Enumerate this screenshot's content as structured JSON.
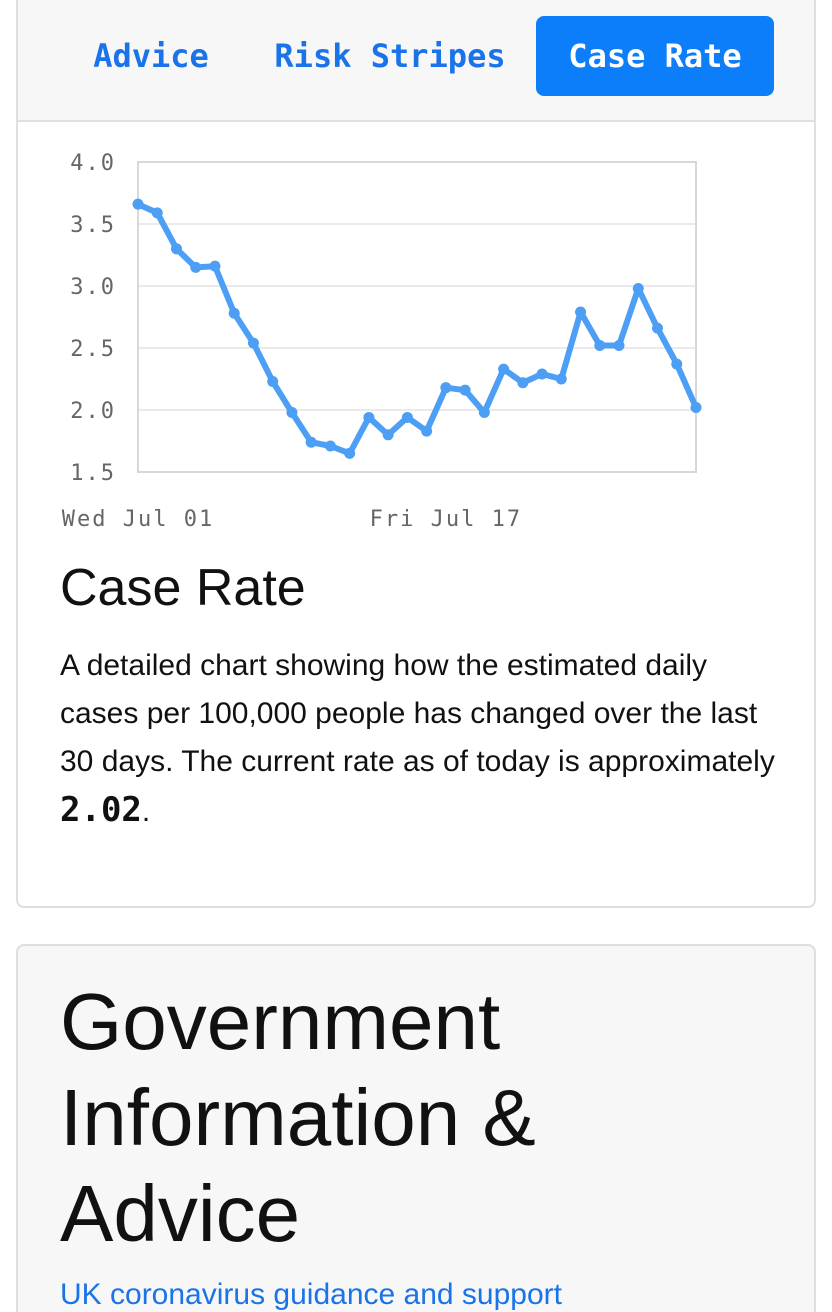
{
  "tabs": [
    {
      "label": "Advice",
      "active": false
    },
    {
      "label": "Risk Stripes",
      "active": false
    },
    {
      "label": "Case Rate",
      "active": true
    }
  ],
  "case_rate": {
    "title": "Case Rate",
    "description_prefix": "A detailed chart showing how the estimated daily cases per 100,000 people has changed over the last 30 days. The current rate as of today is approximately ",
    "current_rate": "2.02",
    "description_suffix": "."
  },
  "chart_data": {
    "type": "line",
    "x": [
      "Jul 01",
      "Jul 02",
      "Jul 03",
      "Jul 04",
      "Jul 05",
      "Jul 06",
      "Jul 07",
      "Jul 08",
      "Jul 09",
      "Jul 10",
      "Jul 11",
      "Jul 12",
      "Jul 13",
      "Jul 14",
      "Jul 15",
      "Jul 16",
      "Jul 17",
      "Jul 18",
      "Jul 19",
      "Jul 20",
      "Jul 21",
      "Jul 22",
      "Jul 23",
      "Jul 24",
      "Jul 25",
      "Jul 26",
      "Jul 27",
      "Jul 28",
      "Jul 29",
      "Jul 30"
    ],
    "series": [
      {
        "values": [
          3.66,
          3.59,
          3.3,
          3.15,
          3.16,
          2.78,
          2.54,
          2.23,
          1.98,
          1.74,
          1.71,
          1.65,
          1.94,
          1.8,
          1.94,
          1.83,
          2.18,
          2.16,
          1.98,
          2.33,
          2.22,
          2.29,
          2.25,
          2.79,
          2.52,
          2.52,
          2.98,
          2.66,
          2.37,
          2.02
        ]
      }
    ],
    "x_tick_labels": [
      "Wed Jul 01",
      "Fri Jul 17"
    ],
    "y_ticks": [
      "4.0",
      "3.5",
      "3.0",
      "2.5",
      "2.0",
      "1.5"
    ],
    "ylim": [
      1.5,
      4.0
    ],
    "grid": true,
    "line_color": "#4d9ef5"
  },
  "government": {
    "title": "Government Information & Advice",
    "link_label": "UK coronavirus guidance and support"
  }
}
